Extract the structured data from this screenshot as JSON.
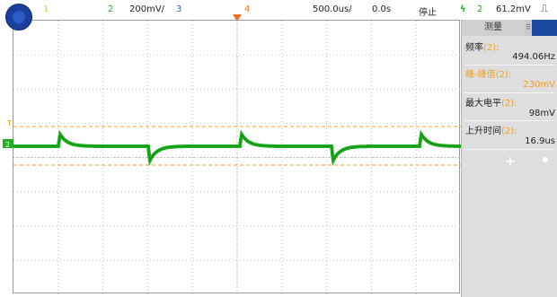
{
  "topbar": {
    "ch1": "1",
    "ch2": "2",
    "ch2_scale": "200mV/",
    "ch3": "3",
    "ch4": "4",
    "timebase": "500.0us/",
    "delay": "0.0s",
    "run_state": "停止",
    "trigger_icon": "trigger-lightning-icon",
    "trigger_ch": "2",
    "trigger_level": "61.2mV",
    "edge_icon": "rising-edge-icon"
  },
  "panel": {
    "tab_measure": "测量",
    "tab_separator": "⠿",
    "measurements": [
      {
        "label": "频率",
        "ch": "(2):",
        "value": "494.06Hz",
        "color": "#222222"
      },
      {
        "label": "峰-峰值",
        "ch": "(2):",
        "value": "230mV",
        "color": "#f0a020"
      },
      {
        "label": "最大电平",
        "ch": "(2):",
        "value": "98mV",
        "color": "#222222"
      },
      {
        "label": "上升时间",
        "ch": "(2):",
        "value": "16.9us",
        "color": "#222222"
      }
    ],
    "add_icon": "plus-icon",
    "add_label": "+"
  },
  "colors": {
    "ch1": "#e8d000",
    "ch2": "#22b020",
    "ch3": "#3060d0",
    "ch4": "#f07020",
    "cursor": "#f0a020",
    "grid": "#bfbfbf"
  },
  "chart_data": {
    "type": "line",
    "series": [
      {
        "channel": "2",
        "shape": "DC baseline with a positive spike every rising edge and a negative spike every falling edge",
        "period_us": 2024,
        "peak_to_peak_mV": 230,
        "max_mV": 98
      }
    ],
    "cursor_levels_mV": [
      98,
      -132
    ],
    "trigger_level_mV": 61.2
  }
}
